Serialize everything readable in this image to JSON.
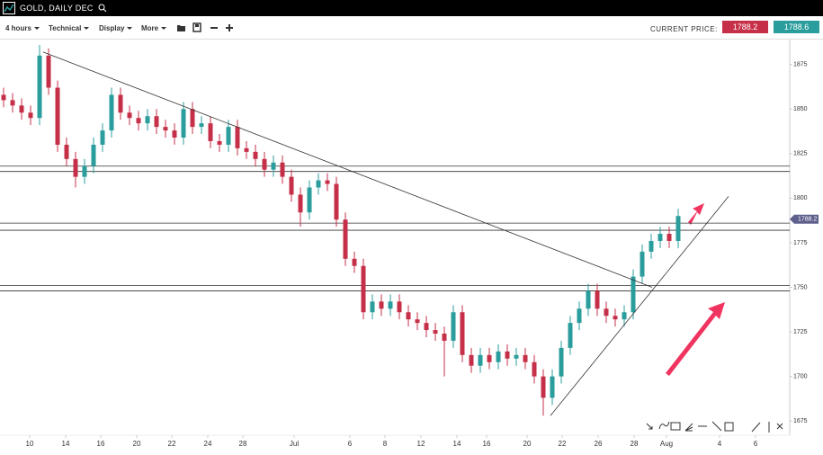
{
  "toolbar": {
    "symbol": "GOLD, DAILY DEC",
    "menus": [
      "4 hours",
      "Technical",
      "Display",
      "More"
    ],
    "current_price_label": "CURRENT PRICE:",
    "bid": "1788.2",
    "ask": "1788.6"
  },
  "chart_data": {
    "type": "candlestick",
    "up_color": "#2a9d9c",
    "down_color": "#c62f48",
    "open": [
      1858,
      1855,
      1852,
      1848,
      1845,
      1880,
      1862,
      1830,
      1822,
      1812,
      1818,
      1830,
      1838,
      1858,
      1848,
      1845,
      1842,
      1846,
      1840,
      1838,
      1834,
      1850,
      1840,
      1842,
      1832,
      1830,
      1840,
      1828,
      1826,
      1822,
      1816,
      1820,
      1812,
      1802,
      1792,
      1806,
      1810,
      1808,
      1788,
      1766,
      1762,
      1736,
      1742,
      1738,
      1742,
      1736,
      1732,
      1730,
      1726,
      1724,
      1720,
      1736,
      1712,
      1706,
      1712,
      1708,
      1714,
      1710,
      1712,
      1708,
      1700,
      1688,
      1700,
      1716,
      1730,
      1738,
      1748,
      1738,
      1734,
      1732,
      1736,
      1756,
      1770,
      1776,
      1780,
      1776
    ],
    "high": [
      1862,
      1859,
      1856,
      1852,
      1886,
      1884,
      1866,
      1834,
      1826,
      1822,
      1834,
      1842,
      1862,
      1862,
      1852,
      1849,
      1850,
      1850,
      1844,
      1842,
      1854,
      1854,
      1846,
      1846,
      1836,
      1844,
      1844,
      1832,
      1830,
      1826,
      1824,
      1824,
      1816,
      1806,
      1810,
      1814,
      1814,
      1812,
      1792,
      1770,
      1766,
      1746,
      1746,
      1746,
      1746,
      1740,
      1736,
      1734,
      1730,
      1728,
      1740,
      1740,
      1716,
      1716,
      1716,
      1718,
      1718,
      1716,
      1716,
      1712,
      1704,
      1704,
      1720,
      1734,
      1742,
      1752,
      1752,
      1742,
      1738,
      1740,
      1760,
      1774,
      1780,
      1784,
      1784,
      1794
    ],
    "low": [
      1851,
      1848,
      1844,
      1841,
      1841,
      1858,
      1826,
      1818,
      1806,
      1808,
      1814,
      1826,
      1834,
      1844,
      1841,
      1838,
      1838,
      1836,
      1834,
      1830,
      1830,
      1836,
      1836,
      1828,
      1826,
      1826,
      1824,
      1822,
      1818,
      1812,
      1812,
      1808,
      1798,
      1784,
      1788,
      1802,
      1804,
      1784,
      1762,
      1758,
      1732,
      1732,
      1734,
      1734,
      1732,
      1728,
      1726,
      1722,
      1720,
      1700,
      1716,
      1708,
      1702,
      1702,
      1704,
      1704,
      1706,
      1706,
      1704,
      1696,
      1678,
      1684,
      1696,
      1712,
      1726,
      1734,
      1734,
      1730,
      1728,
      1728,
      1732,
      1752,
      1766,
      1772,
      1772,
      1772
    ],
    "close": [
      1855,
      1852,
      1848,
      1845,
      1880,
      1862,
      1830,
      1822,
      1812,
      1818,
      1830,
      1838,
      1858,
      1848,
      1845,
      1842,
      1846,
      1840,
      1838,
      1834,
      1850,
      1840,
      1842,
      1832,
      1830,
      1840,
      1828,
      1826,
      1822,
      1816,
      1820,
      1812,
      1802,
      1792,
      1806,
      1810,
      1808,
      1788,
      1766,
      1762,
      1736,
      1742,
      1738,
      1742,
      1736,
      1732,
      1730,
      1726,
      1724,
      1720,
      1736,
      1712,
      1706,
      1712,
      1708,
      1714,
      1710,
      1712,
      1708,
      1700,
      1688,
      1700,
      1716,
      1730,
      1738,
      1748,
      1738,
      1734,
      1732,
      1736,
      1756,
      1770,
      1776,
      1780,
      1776,
      1790
    ],
    "xlim": [
      -0.4,
      87.4
    ],
    "xticks": [
      {
        "value": 2.9,
        "label": "10"
      },
      {
        "value": 6.9,
        "label": "14"
      },
      {
        "value": 10.8,
        "label": "16"
      },
      {
        "value": 14.8,
        "label": "20"
      },
      {
        "value": 18.7,
        "label": "22"
      },
      {
        "value": 22.7,
        "label": "24"
      },
      {
        "value": 26.6,
        "label": "28"
      },
      {
        "value": 32.3,
        "label": "Jul"
      },
      {
        "value": 38.5,
        "label": "6"
      },
      {
        "value": 42.4,
        "label": "8"
      },
      {
        "value": 46.4,
        "label": "12"
      },
      {
        "value": 50.4,
        "label": "14"
      },
      {
        "value": 53.7,
        "label": "16"
      },
      {
        "value": 58.2,
        "label": "20"
      },
      {
        "value": 62.1,
        "label": "22"
      },
      {
        "value": 66.1,
        "label": "26"
      },
      {
        "value": 70.1,
        "label": "28"
      },
      {
        "value": 73.7,
        "label": "Aug"
      },
      {
        "value": 79.6,
        "label": "4"
      },
      {
        "value": 83.6,
        "label": "6"
      }
    ],
    "ylim": [
      1667,
      1889
    ],
    "yticks": [
      1675,
      1700,
      1725,
      1750,
      1775,
      1800,
      1825,
      1850,
      1875
    ],
    "hlines": [
      1818,
      1815,
      1786,
      1782,
      1751,
      1748
    ],
    "trendlines": [
      {
        "x": [
          4.4,
          72.1
        ],
        "y": [
          1882,
          1750
        ]
      },
      {
        "x": [
          60.8,
          80.6
        ],
        "y": [
          1678,
          1801
        ]
      }
    ],
    "price_tag": 1788.2,
    "price_tag_color": "#5d5f8c"
  }
}
